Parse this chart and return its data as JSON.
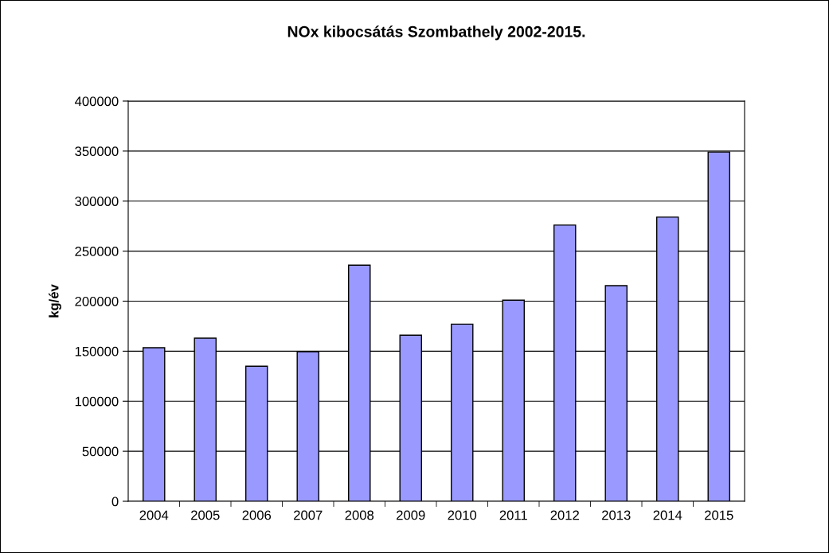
{
  "chart_data": {
    "type": "bar",
    "title": "NOx kibocsátás Szombathely 2002-2015.",
    "ylabel": "kg/év",
    "categories": [
      "2004",
      "2005",
      "2006",
      "2007",
      "2008",
      "2009",
      "2010",
      "2011",
      "2012",
      "2013",
      "2014",
      "2015"
    ],
    "values": [
      153500,
      163000,
      135000,
      149500,
      236000,
      166000,
      177000,
      201000,
      276000,
      215500,
      284000,
      349000
    ],
    "color": "#9999ff",
    "ylim": [
      0,
      400000
    ],
    "yticks": [
      0,
      50000,
      100000,
      150000,
      200000,
      250000,
      300000,
      350000,
      400000
    ],
    "grid": "y"
  }
}
